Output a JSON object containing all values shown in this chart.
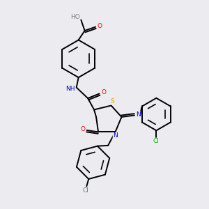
{
  "bg_color": "#ebebf0",
  "atom_colors": {
    "C": "#000000",
    "N": "#0000cc",
    "O": "#ff0000",
    "S": "#ccaa00",
    "Cl": "#00bb00",
    "H": "#808080"
  },
  "bond_color": "#000000",
  "bond_width": 1.4,
  "fig_size": [
    3.0,
    3.0
  ],
  "dpi": 100
}
